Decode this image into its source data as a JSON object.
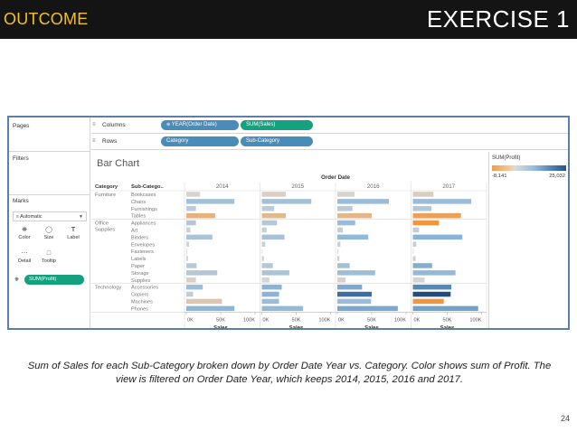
{
  "slide": {
    "section_label": "OUTCOME",
    "title": "EXERCISE 1",
    "caption": "Sum of Sales for each Sub-Category broken down by Order Date Year vs. Category. Color shows sum of Profit. The view is filtered on Order Date Year, which keeps 2014, 2015, 2016 and 2017.",
    "page_number": "24"
  },
  "tableau": {
    "side": {
      "pages_label": "Pages",
      "filters_label": "Filters",
      "marks_label": "Marks",
      "marks_type": "Automatic",
      "mark_buttons": [
        {
          "label": "Color",
          "icon": "color-palette-icon"
        },
        {
          "label": "Size",
          "icon": "size-icon"
        },
        {
          "label": "Label",
          "icon": "label-icon"
        },
        {
          "label": "Detail",
          "icon": "detail-icon"
        },
        {
          "label": "Tooltip",
          "icon": "tooltip-icon"
        }
      ],
      "color_pill": "SUM(Profit)"
    },
    "shelves": {
      "columns_label": "Columns",
      "rows_label": "Rows",
      "columns": [
        "YEAR(Order Date)",
        "SUM(Sales)"
      ],
      "rows": [
        "Category",
        "Sub-Category"
      ]
    },
    "legend": {
      "title": "SUM(Profit)",
      "min": "-8,141",
      "max": "25,032"
    }
  },
  "chart_data": {
    "type": "bar",
    "title": "Bar Chart",
    "column_header": "Order Date",
    "row_headers": [
      "Category",
      "Sub-Catego.."
    ],
    "years": [
      "2014",
      "2015",
      "2016",
      "2017"
    ],
    "xlabel": "Sales",
    "xlim": [
      0,
      100000
    ],
    "x_ticks": [
      "0K",
      "50K",
      "100K"
    ],
    "color_measure": "SUM(Profit)",
    "categories": [
      {
        "name": "Furniture",
        "subcategories": [
          "Bookcases",
          "Chairs",
          "Furnishings",
          "Tables"
        ]
      },
      {
        "name": "Office Supplies",
        "subcategories": [
          "Appliances",
          "Art",
          "Binders",
          "Envelopes",
          "Fasteners",
          "Labels",
          "Paper",
          "Storage",
          "Supplies"
        ]
      },
      {
        "name": "Technology",
        "subcategories": [
          "Accessories",
          "Copiers",
          "Machines",
          "Phones"
        ]
      }
    ],
    "series": [
      {
        "year": "2014",
        "sales": [
          20000,
          70000,
          14000,
          42000,
          14000,
          6000,
          38000,
          4000,
          1000,
          2500,
          15000,
          45000,
          14000,
          24000,
          10000,
          52000,
          70000
        ],
        "profit": [
          -300,
          6000,
          3000,
          -3500,
          4000,
          1600,
          5000,
          1000,
          200,
          900,
          3600,
          4000,
          -600,
          6500,
          2500,
          -1500,
          8500
        ]
      },
      {
        "year": "2015",
        "sales": [
          35000,
          72000,
          18000,
          35000,
          22000,
          7000,
          33000,
          5000,
          1000,
          3000,
          16000,
          40000,
          11000,
          29000,
          25000,
          25000,
          60000
        ],
        "profit": [
          -700,
          6000,
          3000,
          -2800,
          4000,
          1800,
          5500,
          1500,
          200,
          1000,
          4000,
          5000,
          300,
          9000,
          9000,
          7000,
          8000
        ]
      },
      {
        "year": "2016",
        "sales": [
          25000,
          75000,
          22000,
          50000,
          26000,
          8000,
          45000,
          4500,
          800,
          3000,
          18000,
          55000,
          12000,
          36000,
          50000,
          49000,
          88000
        ],
        "profit": [
          -300,
          7000,
          3500,
          -3000,
          7000,
          2000,
          8000,
          1500,
          300,
          1200,
          6000,
          6500,
          -500,
          11000,
          20000,
          7000,
          11000
        ]
      },
      {
        "year": "2017",
        "sales": [
          30000,
          85000,
          27000,
          70000,
          38000,
          9000,
          72000,
          5000,
          1000,
          4000,
          28000,
          62000,
          17000,
          56000,
          55000,
          45000,
          95000
        ],
        "profit": [
          -900,
          7000,
          4000,
          -5000,
          -8000,
          2500,
          9000,
          1800,
          300,
          1400,
          10000,
          8000,
          500,
          16000,
          25000,
          -6000,
          12000
        ]
      }
    ]
  }
}
